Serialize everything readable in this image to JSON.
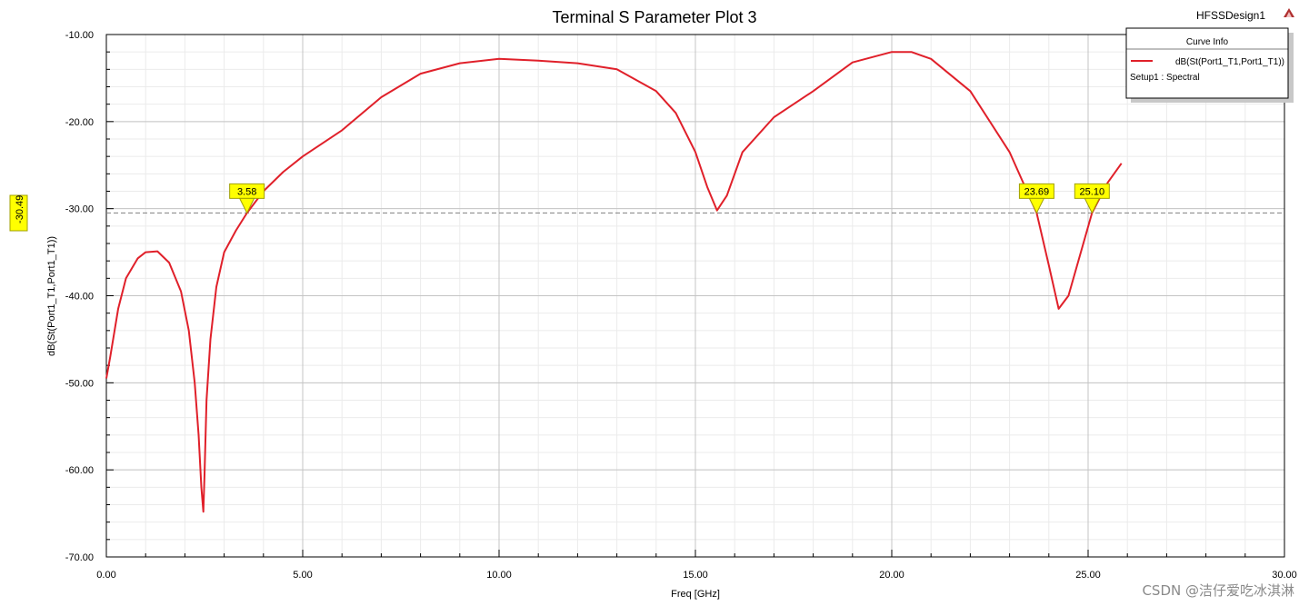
{
  "header": {
    "title": "Terminal S Parameter Plot 3",
    "design_name": "HFSSDesign1"
  },
  "legend": {
    "title": "Curve Info",
    "curve_name": "dB(St(Port1_T1,Port1_T1))",
    "setup": "Setup1 : Spectral",
    "placement": "top-right"
  },
  "watermark": "CSDN @洁仔爱吃冰淇淋",
  "chart_data": {
    "type": "line",
    "title": "Terminal S Parameter Plot 3",
    "xlabel": "Freq [GHz]",
    "ylabel": "dB(St(Port1_T1,Port1_T1))",
    "xlim": [
      0,
      30
    ],
    "ylim": [
      -70,
      -10
    ],
    "x_ticks": [
      0,
      5,
      10,
      15,
      20,
      25,
      30
    ],
    "x_tick_labels": [
      "0.00",
      "5.00",
      "10.00",
      "15.00",
      "20.00",
      "25.00",
      "30.00"
    ],
    "y_ticks": [
      -10,
      -20,
      -30,
      -40,
      -50,
      -60,
      -70
    ],
    "y_tick_labels": [
      "-10.00",
      "-20.00",
      "-30.00",
      "-40.00",
      "-50.00",
      "-60.00",
      "-70.00"
    ],
    "grid": true,
    "line_color": "#e0202a",
    "series": [
      {
        "name": "dB(St(Port1_T1,Port1_T1))",
        "x": [
          0.0,
          0.1,
          0.3,
          0.5,
          0.8,
          1.0,
          1.3,
          1.6,
          1.9,
          2.1,
          2.25,
          2.35,
          2.42,
          2.47,
          2.5,
          2.55,
          2.65,
          2.8,
          3.0,
          3.3,
          3.58,
          4.0,
          4.5,
          5.0,
          6.0,
          7.0,
          8.0,
          9.0,
          10.0,
          11.0,
          12.0,
          13.0,
          14.0,
          14.5,
          15.0,
          15.3,
          15.55,
          15.8,
          16.2,
          17.0,
          18.0,
          19.0,
          20.0,
          20.5,
          21.0,
          22.0,
          23.0,
          23.69,
          24.0,
          24.25,
          24.5,
          25.1,
          25.5,
          25.85
        ],
        "y": [
          -49.5,
          -47.0,
          -41.5,
          -38.0,
          -35.7,
          -35.0,
          -34.9,
          -36.2,
          -39.5,
          -44.0,
          -50.0,
          -56.0,
          -62.0,
          -64.8,
          -60.5,
          -52.0,
          -45.0,
          -39.0,
          -35.0,
          -32.5,
          -30.49,
          -28.0,
          -25.8,
          -24.0,
          -21.0,
          -17.2,
          -14.5,
          -13.3,
          -12.8,
          -13.0,
          -13.3,
          -14.0,
          -16.5,
          -19.0,
          -23.5,
          -27.5,
          -30.2,
          -28.5,
          -23.5,
          -19.5,
          -16.5,
          -13.2,
          -12.0,
          -12.0,
          -12.8,
          -16.5,
          -23.5,
          -30.49,
          -36.5,
          -41.5,
          -40.0,
          -30.49,
          -27.0,
          -24.8
        ]
      }
    ],
    "reference_line": {
      "y": -30.49,
      "label": "-30.49"
    },
    "markers": [
      {
        "x": 3.58,
        "label": "3.58"
      },
      {
        "x": 23.69,
        "label": "23.69"
      },
      {
        "x": 25.1,
        "label": "25.10"
      }
    ]
  }
}
